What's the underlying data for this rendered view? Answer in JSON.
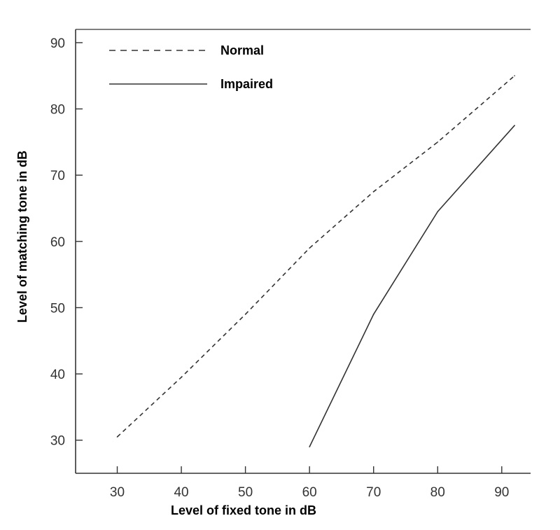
{
  "chart_data": {
    "type": "line",
    "title": "",
    "xlabel": "Level of fixed tone in dB",
    "ylabel": "Level of matching tone in dB",
    "xlim": [
      23.5,
      94.5
    ],
    "ylim": [
      25,
      92
    ],
    "x_ticks": [
      "30",
      "40",
      "50",
      "60",
      "70",
      "80",
      "90"
    ],
    "y_ticks": [
      "30",
      "40",
      "50",
      "60",
      "70",
      "80",
      "90"
    ],
    "grid": false,
    "legend_position": "top-left",
    "series": [
      {
        "name": "Normal",
        "style": "dashed",
        "color": "#333333",
        "x": [
          30,
          40,
          50,
          60,
          70,
          80,
          92
        ],
        "y": [
          30.5,
          39.5,
          49,
          59,
          67.5,
          75,
          85
        ]
      },
      {
        "name": "Impaired",
        "style": "solid",
        "color": "#333333",
        "x": [
          60,
          70,
          80,
          92
        ],
        "y": [
          29,
          49,
          64.5,
          77.5
        ]
      }
    ]
  }
}
